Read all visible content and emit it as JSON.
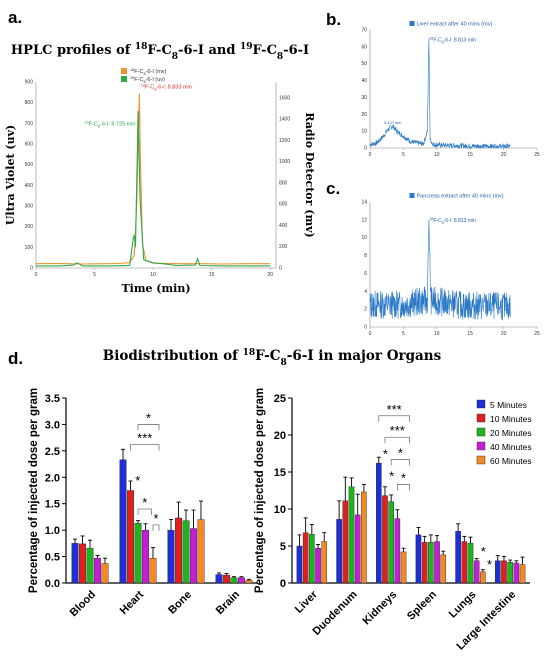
{
  "panels": {
    "a": {
      "letter": "a.",
      "title_parts": [
        "HPLC profiles of ",
        "18",
        "F-C",
        "8",
        "-6-I and ",
        "19",
        "F-C",
        "8",
        "-6-I"
      ],
      "legend": [
        {
          "sup": "18",
          "text": "F-C",
          "sub": "8",
          "rest": "-6-I (mv)",
          "color": "#f0922e"
        },
        {
          "sup": "19",
          "text": "F-C",
          "sub": "8",
          "rest": "-6-I (uv)",
          "color": "#2eaa4a"
        }
      ],
      "annotations": [
        {
          "sup": "18",
          "text": "F-C",
          "sub": "8",
          "rest": "-6-I: 8.833 min",
          "color": "#e0301e"
        },
        {
          "sup": "19",
          "text": "F-C",
          "sub": "8",
          "rest": "-6-I: 8.725 min",
          "color": "#2eaa4a"
        }
      ],
      "xlabel": "Time (min)",
      "ylabel_left": "Ultra Violet (uv)",
      "ylabel_right": "Radio Detector (mv)",
      "x_ticks": [
        "0",
        "5",
        "10",
        "15",
        "20"
      ],
      "y_ticks_left": [
        "0",
        "100",
        "200",
        "300",
        "400",
        "500",
        "600",
        "700",
        "800",
        "900"
      ],
      "y_ticks_right": [
        "0",
        "200",
        "400",
        "600",
        "800",
        "1000",
        "1200",
        "1400",
        "1600"
      ]
    },
    "b": {
      "letter": "b.",
      "legend": "Liver extract after 40 mins (mv)",
      "annotation_peak": {
        "sup": "18",
        "text": "F-C",
        "sub": "8",
        "rest": "-6-I: 8.813 min"
      },
      "annotation_small": "3.447 min",
      "x_ticks": [
        "0",
        "5",
        "10",
        "15",
        "20",
        "25"
      ],
      "y_ticks": [
        "0",
        "10",
        "20",
        "30",
        "40",
        "50",
        "60",
        "70"
      ]
    },
    "c": {
      "letter": "c.",
      "legend": "Pancreas extract after 40 mins (mv)",
      "annotation_peak": {
        "sup": "18",
        "text": "F-C",
        "sub": "8",
        "rest": "-6-I: 8.813 min"
      },
      "x_ticks": [
        "0",
        "5",
        "10",
        "15",
        "20",
        "25"
      ],
      "y_ticks": [
        "0",
        "2",
        "4",
        "6",
        "8",
        "10",
        "12",
        "14"
      ]
    },
    "d": {
      "letter": "d.",
      "title_parts": [
        "Biodistribution of ",
        "18",
        "F-C",
        "8",
        "-6-I in major Organs"
      ],
      "ylabel": "Percentage of injected dose per gram"
    }
  },
  "chart_data": [
    {
      "type": "line",
      "panel": "a",
      "series": [
        {
          "name": "18F-C8-6-I (mv)",
          "color": "#f0922e",
          "axis": "right",
          "x": [
            0,
            2,
            4,
            6,
            7,
            8,
            8.4,
            8.6,
            8.8,
            8.833,
            8.9,
            9.1,
            9.4,
            10,
            12,
            14,
            16,
            18,
            20
          ],
          "y": [
            40,
            42,
            38,
            40,
            42,
            50,
            120,
            600,
            1500,
            1640,
            1100,
            220,
            70,
            45,
            40,
            40,
            38,
            40,
            40
          ]
        },
        {
          "name": "19F-C8-6-I (uv)",
          "color": "#2eaa4a",
          "axis": "left",
          "x": [
            0,
            2,
            3.2,
            3.5,
            4,
            6,
            8,
            8.3,
            8.4,
            8.5,
            8.725,
            8.9,
            9.2,
            10,
            11,
            12,
            13.6,
            13.8,
            14,
            16,
            18,
            20
          ],
          "y": [
            10,
            10,
            14,
            25,
            10,
            10,
            12,
            140,
            160,
            100,
            760,
            320,
            40,
            25,
            20,
            12,
            14,
            45,
            12,
            10,
            10,
            10
          ]
        }
      ],
      "xlim": [
        0,
        20.5
      ],
      "ylim_left": [
        0,
        900
      ],
      "ylim_right": [
        0,
        1750
      ],
      "xlabel": "Time (min)",
      "ylabel": "Ultra Violet (uv)",
      "ylabel_right": "Radio Detector (mv)"
    },
    {
      "type": "line",
      "panel": "b",
      "series": [
        {
          "name": "Liver extract after 40 mins (mv)",
          "color": "#2a78c8",
          "x": [
            0,
            1,
            2,
            2.5,
            3,
            3.447,
            4,
            5,
            6,
            7,
            8,
            8.6,
            8.813,
            9,
            9.5,
            12,
            15,
            18,
            21
          ],
          "y": [
            2,
            3,
            7,
            10,
            12,
            13,
            10,
            7,
            4,
            3,
            2.5,
            10,
            65,
            5,
            2,
            1.5,
            1.2,
            1,
            1
          ]
        }
      ],
      "xlim": [
        0,
        25
      ],
      "ylim": [
        0,
        70
      ]
    },
    {
      "type": "line",
      "panel": "c",
      "series": [
        {
          "name": "Pancreas extract after 40 mins (mv)",
          "color": "#2a78c8",
          "x": [
            0,
            5,
            8.6,
            8.813,
            9.1,
            14,
            21
          ],
          "y": [
            2.5,
            2.5,
            3,
            12,
            3,
            2.4,
            2.3
          ]
        }
      ],
      "xlim": [
        0,
        25
      ],
      "ylim": [
        0,
        14
      ]
    },
    {
      "type": "bar",
      "panel": "d-left",
      "categories": [
        "Blood",
        "Heart",
        "Bone",
        "Brain"
      ],
      "series": [
        {
          "name": "5 Minutes",
          "color": "#1f2fd6",
          "values": [
            0.75,
            2.33,
            1.0,
            0.16
          ],
          "err": [
            0.08,
            0.2,
            0.2,
            0.03
          ]
        },
        {
          "name": "10 Minutes",
          "color": "#e0201e",
          "values": [
            0.74,
            1.75,
            1.23,
            0.15
          ],
          "err": [
            0.15,
            0.18,
            0.3,
            0.03
          ]
        },
        {
          "name": "20 Minutes",
          "color": "#1fb31f",
          "values": [
            0.66,
            1.13,
            1.18,
            0.1
          ],
          "err": [
            0.15,
            0.05,
            0.2,
            0.02
          ]
        },
        {
          "name": "40 Minutes",
          "color": "#c51fd6",
          "values": [
            0.47,
            1.0,
            1.03,
            0.1
          ],
          "err": [
            0.05,
            0.12,
            0.35,
            0.02
          ]
        },
        {
          "name": "60 Minutes",
          "color": "#f08a26",
          "values": [
            0.37,
            0.47,
            1.2,
            0.05
          ],
          "err": [
            0.1,
            0.2,
            0.35,
            0.02
          ]
        }
      ],
      "ylim": [
        0,
        3.5
      ],
      "y_ticks": [
        "0.0",
        "0.5",
        "1.0",
        "1.5",
        "2.0",
        "2.5",
        "3.0",
        "3.5"
      ],
      "ylabel": "Percentage of injected dose per gram",
      "significance": [
        {
          "category": 1,
          "from": 1,
          "to": 4,
          "label": "***",
          "y": 2.62
        },
        {
          "category": 1,
          "from": 2,
          "to": 3,
          "label": "*",
          "y": 1.4
        },
        {
          "category": 1,
          "from": 2,
          "to": 4,
          "label": "*",
          "y": 3.0
        },
        {
          "category": 1,
          "from": 4,
          "to": 4,
          "label": "*",
          "y": 1.1
        },
        {
          "category": 1,
          "bar": 1,
          "label": "*",
          "y": 1.95
        }
      ]
    },
    {
      "type": "bar",
      "panel": "d-right",
      "categories": [
        "Liver",
        "Duodenum",
        "Kidneys",
        "Spleen",
        "Lungs",
        "Large Intestine"
      ],
      "series": [
        {
          "name": "5 Minutes",
          "color": "#1f2fd6",
          "values": [
            5.0,
            8.6,
            16.2,
            6.5,
            7.0,
            3.0
          ],
          "err": [
            1.5,
            2.5,
            0.8,
            1.0,
            1.0,
            0.7
          ]
        },
        {
          "name": "10 Minutes",
          "color": "#e0201e",
          "values": [
            6.8,
            11.1,
            11.8,
            5.5,
            5.6,
            3.0
          ],
          "err": [
            2.0,
            3.2,
            1.2,
            0.8,
            0.7,
            0.6
          ]
        },
        {
          "name": "20 Minutes",
          "color": "#1fb31f",
          "values": [
            6.6,
            13.0,
            11.0,
            5.5,
            5.4,
            2.8
          ],
          "err": [
            1.3,
            1.2,
            0.9,
            1.0,
            0.8,
            0.3
          ]
        },
        {
          "name": "40 Minutes",
          "color": "#c51fd6",
          "values": [
            4.7,
            9.2,
            8.7,
            5.6,
            3.0,
            2.7
          ],
          "err": [
            0.5,
            2.8,
            1.2,
            0.8,
            0.3,
            0.3
          ]
        },
        {
          "name": "60 Minutes",
          "color": "#f08a26",
          "values": [
            5.6,
            12.3,
            4.2,
            3.8,
            1.5,
            2.5
          ],
          "err": [
            1.2,
            1.0,
            0.5,
            0.5,
            0.3,
            1.0
          ]
        }
      ],
      "ylim": [
        0,
        25
      ],
      "y_ticks": [
        "0",
        "5",
        "10",
        "15",
        "20",
        "25"
      ],
      "ylabel": "Percentage of injected dose per gram",
      "legend_position": "top-right",
      "significance": [
        {
          "category": 2,
          "from": 0,
          "to": 4,
          "label": "***",
          "y": 22.6
        },
        {
          "category": 2,
          "from": 1,
          "to": 4,
          "label": "***",
          "y": 19.7
        },
        {
          "category": 2,
          "from": 2,
          "to": 4,
          "label": "*",
          "y": 16.7
        },
        {
          "category": 2,
          "from": 3,
          "to": 4,
          "label": "*",
          "y": 13.3
        },
        {
          "category": 2,
          "bar": 0,
          "label": "*",
          "y": 17.5
        },
        {
          "category": 2,
          "bar": 1,
          "label": "*",
          "y": 14.5
        },
        {
          "category": 4,
          "bar": 3,
          "label": "*",
          "y": 4.3
        },
        {
          "category": 4,
          "bar": 4,
          "label": "*",
          "y": 2.6
        }
      ]
    }
  ]
}
